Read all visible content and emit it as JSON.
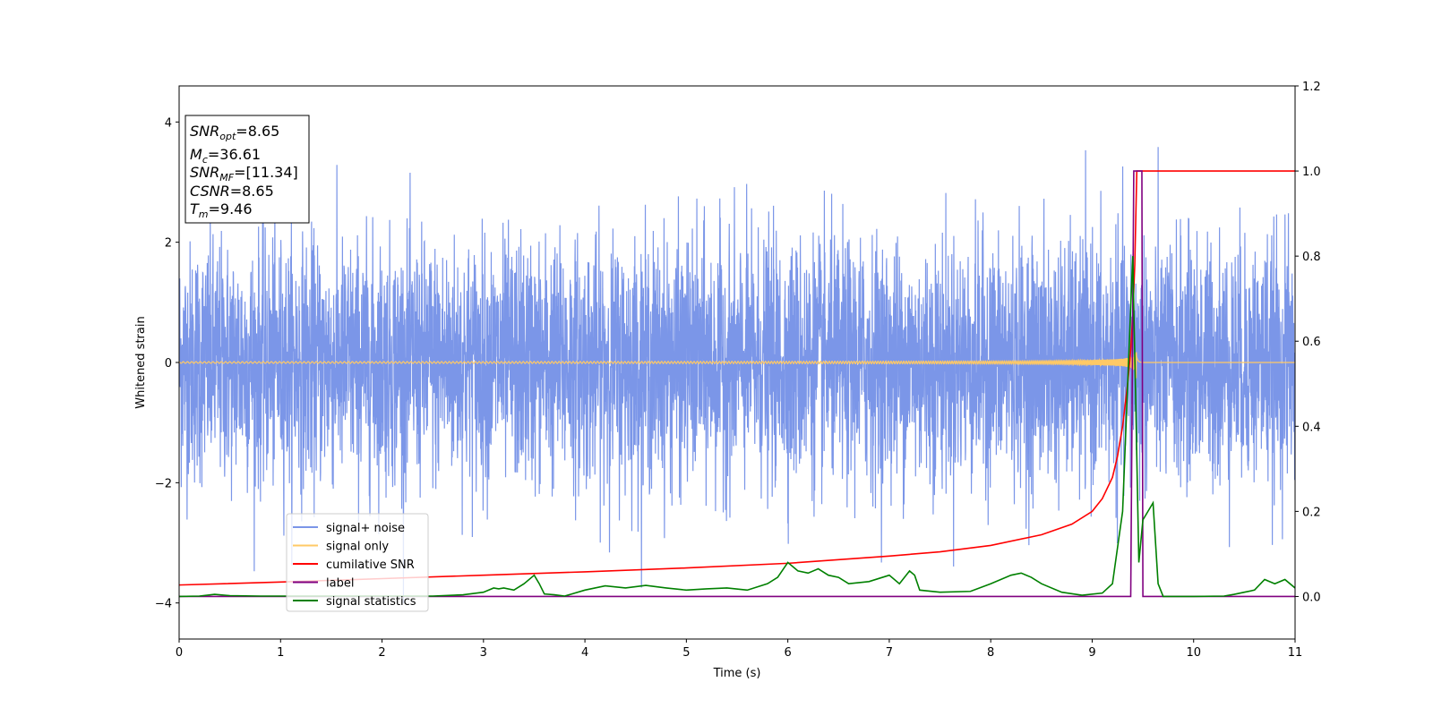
{
  "chart_data": {
    "type": "line",
    "xlabel": "Time (s)",
    "ylabel": "Whitened strain",
    "xlim": [
      0,
      11
    ],
    "ylim": [
      -4.6,
      4.6
    ],
    "y2lim": [
      -0.1,
      1.2
    ],
    "x_ticks": [
      "0",
      "1",
      "2",
      "3",
      "4",
      "5",
      "6",
      "7",
      "8",
      "9",
      "10",
      "11"
    ],
    "y_ticks": [
      "4",
      "2",
      "0",
      "−2",
      "−4"
    ],
    "y_tick_values": [
      4,
      2,
      0,
      -2,
      -4
    ],
    "y2_ticks": [
      "1.2",
      "1.0",
      "0.8",
      "0.6",
      "0.4",
      "0.2",
      "0.0"
    ],
    "y2_tick_values": [
      1.2,
      1.0,
      0.8,
      0.6,
      0.4,
      0.2,
      0.0
    ],
    "grid": false,
    "legend_position": "lower-left",
    "info_box": {
      "snr_opt": {
        "main": "SNR",
        "sub": "opt",
        "value": "=8.65"
      },
      "mc": {
        "main": "M",
        "sub": "c",
        "value": "=36.61"
      },
      "snr_mf": {
        "main": "SNR",
        "sub": "MF",
        "value": "=[11.34]"
      },
      "csnr": {
        "main": "CSNR",
        "value": "=8.65"
      },
      "tm": {
        "main": "T",
        "sub": "m",
        "value": "=9.46"
      }
    },
    "series": [
      {
        "name": "signal+ noise",
        "color": "#7b96e8",
        "axis": "left",
        "description_style": "gaussian-like noise, amplitude approx ±2 with peaks to ±4, merger at ~9.44 s",
        "noise_sigma": 1.0,
        "peak_range": [
          -4.15,
          4.15
        ]
      },
      {
        "name": "signal only",
        "color": "#ffc966",
        "axis": "left",
        "chirp": {
          "merger_time": 9.44,
          "end_time": 9.5,
          "peak_amplitude": 1.3
        }
      },
      {
        "name": "cumilative SNR",
        "color": "#ff0000",
        "axis": "right",
        "x": [
          0,
          1,
          2,
          3,
          4,
          5,
          6,
          7,
          7.5,
          8,
          8.5,
          8.8,
          9.0,
          9.1,
          9.2,
          9.25,
          9.3,
          9.35,
          9.38,
          9.4,
          9.42,
          9.44,
          9.46,
          9.5,
          11
        ],
        "values": [
          0.027,
          0.034,
          0.042,
          0.05,
          0.058,
          0.067,
          0.078,
          0.095,
          0.105,
          0.12,
          0.145,
          0.17,
          0.2,
          0.23,
          0.28,
          0.33,
          0.4,
          0.5,
          0.58,
          0.66,
          0.78,
          1.0,
          1.0,
          1.0,
          1.0
        ]
      },
      {
        "name": "label",
        "color": "#800080",
        "axis": "right",
        "x": [
          0,
          9.38,
          9.41,
          9.49,
          9.5,
          11
        ],
        "values": [
          0,
          0,
          1.0,
          1.0,
          0,
          0
        ]
      },
      {
        "name": "signal statistics",
        "color": "#008000",
        "axis": "right",
        "x": [
          0,
          0.2,
          0.35,
          0.5,
          0.8,
          1.0,
          1.5,
          2.0,
          2.5,
          2.8,
          3.0,
          3.1,
          3.15,
          3.2,
          3.3,
          3.4,
          3.5,
          3.55,
          3.6,
          3.7,
          3.8,
          4.0,
          4.2,
          4.4,
          4.6,
          4.8,
          5.0,
          5.2,
          5.4,
          5.6,
          5.8,
          5.9,
          6.0,
          6.1,
          6.2,
          6.3,
          6.4,
          6.5,
          6.6,
          6.8,
          7.0,
          7.1,
          7.2,
          7.25,
          7.3,
          7.5,
          7.8,
          8.0,
          8.2,
          8.3,
          8.4,
          8.5,
          8.7,
          8.9,
          9.1,
          9.2,
          9.3,
          9.35,
          9.4,
          9.43,
          9.46,
          9.5,
          9.55,
          9.6,
          9.65,
          9.7,
          9.8,
          10.0,
          10.3,
          10.4,
          10.5,
          10.6,
          10.7,
          10.8,
          10.9,
          11.0
        ],
        "values": [
          0.0,
          0.001,
          0.005,
          0.002,
          0.001,
          0.001,
          0.001,
          0.001,
          0.001,
          0.004,
          0.01,
          0.02,
          0.018,
          0.02,
          0.015,
          0.03,
          0.05,
          0.03,
          0.006,
          0.004,
          0.001,
          0.015,
          0.025,
          0.02,
          0.026,
          0.02,
          0.015,
          0.018,
          0.02,
          0.015,
          0.03,
          0.045,
          0.08,
          0.06,
          0.055,
          0.065,
          0.05,
          0.045,
          0.03,
          0.035,
          0.05,
          0.03,
          0.06,
          0.05,
          0.015,
          0.01,
          0.012,
          0.03,
          0.05,
          0.055,
          0.045,
          0.03,
          0.01,
          0.003,
          0.008,
          0.03,
          0.2,
          0.5,
          0.8,
          0.45,
          0.08,
          0.18,
          0.2,
          0.22,
          0.03,
          0.0,
          0.0,
          0.0,
          0.001,
          0.005,
          0.01,
          0.015,
          0.04,
          0.03,
          0.04,
          0.02
        ]
      }
    ]
  }
}
